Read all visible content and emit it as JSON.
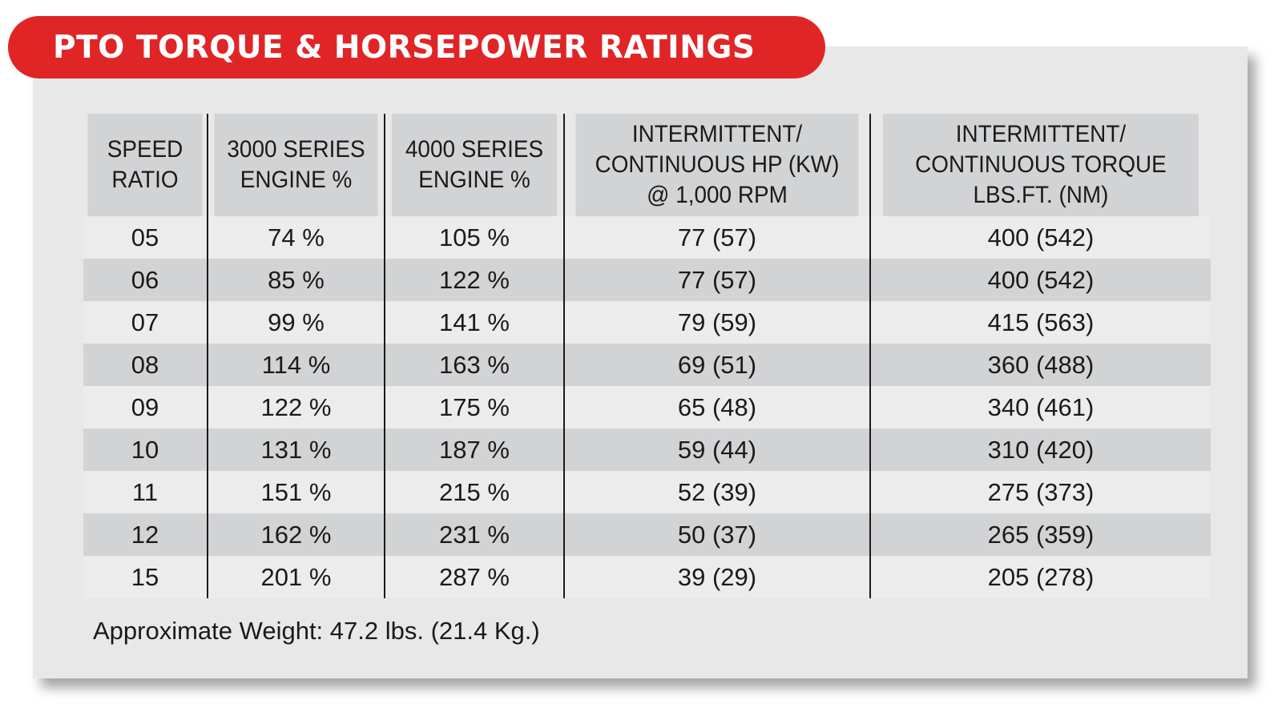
{
  "title": "PTO TORQUE & HORSEPOWER RATINGS",
  "table": {
    "headers": [
      [
        "SPEED",
        "RATIO"
      ],
      [
        "3000 SERIES",
        "ENGINE %"
      ],
      [
        "4000 SERIES",
        "ENGINE %"
      ],
      [
        "INTERMITTENT/",
        "CONTINUOUS HP (KW)",
        "@ 1,000 RPM"
      ],
      [
        "INTERMITTENT/",
        "CONTINUOUS TORQUE",
        "LBS.FT. (NM)"
      ]
    ],
    "rows": [
      [
        "05",
        "74 %",
        "105 %",
        "77 (57)",
        "400 (542)"
      ],
      [
        "06",
        "85 %",
        "122 %",
        "77 (57)",
        "400 (542)"
      ],
      [
        "07",
        "99 %",
        "141 %",
        "79 (59)",
        "415 (563)"
      ],
      [
        "08",
        "114 %",
        "163 %",
        "69 (51)",
        "360 (488)"
      ],
      [
        "09",
        "122 %",
        "175 %",
        "65 (48)",
        "340 (461)"
      ],
      [
        "10",
        "131 %",
        "187 %",
        "59 (44)",
        "310 (420)"
      ],
      [
        "11",
        "151 %",
        "215 %",
        "52 (39)",
        "275 (373)"
      ],
      [
        "12",
        "162 %",
        "231 %",
        "50 (37)",
        "265 (359)"
      ],
      [
        "15",
        "201 %",
        "287 %",
        "39 (29)",
        "205 (278)"
      ]
    ]
  },
  "footnote": "Approximate Weight: 47.2 lbs. (21.4 Kg.)",
  "colors": {
    "banner": "#e02527",
    "card": "#e8e8e9",
    "header_row": "#d2d3d5",
    "stripe": "#d2d3d5"
  }
}
